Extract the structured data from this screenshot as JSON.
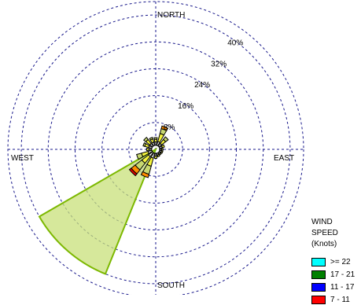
{
  "chart_data": {
    "type": "wind-rose",
    "directions": [
      "N",
      "NNE",
      "NE",
      "ENE",
      "E",
      "ESE",
      "SE",
      "SSE",
      "S",
      "SSW",
      "SW",
      "WSW",
      "W",
      "WNW",
      "NW",
      "NNW"
    ],
    "compass_labels": {
      "north": "NORTH",
      "south": "SOUTH",
      "east": "EAST",
      "west": "WEST"
    },
    "rings": [
      {
        "value": 8,
        "label": "8%"
      },
      {
        "value": 16,
        "label": "16%"
      },
      {
        "value": 24,
        "label": "24%"
      },
      {
        "value": 32,
        "label": "32%"
      },
      {
        "value": 40,
        "label": "40%"
      }
    ],
    "rmax": 44,
    "legend": {
      "title": "WIND SPEED",
      "subtitle": "(Knots)",
      "items": [
        {
          "label": ">= 22",
          "color": "#00ffff"
        },
        {
          "label": "17 - 21",
          "color": "#008000"
        },
        {
          "label": "11 - 17",
          "color": "#0000ff"
        },
        {
          "label": "7 - 11",
          "color": "#ff0000"
        }
      ]
    },
    "stack_colors": [
      "#ffffff",
      "#f4f43c",
      "#c8d870",
      "#ff8c00",
      "#e00000",
      "#0000ff",
      "#008000",
      "#00ffff"
    ],
    "series": [
      {
        "direction": "N",
        "values": [
          1.0,
          0.8,
          0.5
        ]
      },
      {
        "direction": "NNE",
        "values": [
          1.2,
          2.5,
          1.5,
          0.8
        ]
      },
      {
        "direction": "NE",
        "values": [
          1.0,
          1.5,
          1.0
        ]
      },
      {
        "direction": "ENE",
        "values": [
          0.8,
          0.7
        ]
      },
      {
        "direction": "E",
        "values": [
          0.6,
          0.4
        ]
      },
      {
        "direction": "ESE",
        "values": [
          0.6,
          0.4
        ]
      },
      {
        "direction": "SE",
        "values": [
          0.5,
          0.4
        ]
      },
      {
        "direction": "SSE",
        "values": [
          0.6,
          0.5
        ]
      },
      {
        "direction": "S",
        "values": [
          0.8,
          0.7
        ]
      },
      {
        "direction": "SSW",
        "values": [
          1.5,
          2.5,
          2.5,
          1.0
        ]
      },
      {
        "direction": "SW",
        "values": [
          1.5,
          2.5,
          2.5,
          1.5,
          0.7
        ]
      },
      {
        "direction": "WSW",
        "values": [
          1.2,
          2.0,
          1.5
        ]
      },
      {
        "direction": "W",
        "values": [
          0.8,
          0.7
        ]
      },
      {
        "direction": "WNW",
        "values": [
          1.0,
          1.2,
          0.5
        ]
      },
      {
        "direction": "NW",
        "values": [
          1.0,
          1.5,
          0.8
        ]
      },
      {
        "direction": "NNW",
        "values": [
          1.0,
          1.0,
          0.5
        ]
      }
    ],
    "highlight_sector": {
      "from_deg": 202,
      "to_deg": 240,
      "value": 40,
      "fill": "#c8e07a",
      "stroke": "#7cb800"
    },
    "grid": true
  }
}
